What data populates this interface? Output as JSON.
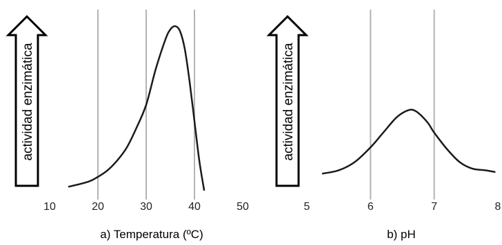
{
  "chart_data": [
    {
      "type": "line",
      "ylabel": "actividad enzimática",
      "xlabel": "a) Temperatura (ºC)",
      "x_ticks": [
        10,
        20,
        30,
        40,
        50
      ],
      "xlim": [
        10,
        50
      ],
      "ylim": [
        0,
        1
      ],
      "grid": "vertical",
      "gridlines_x": [
        20,
        30,
        40
      ],
      "series": [
        {
          "x": [
            14,
            18,
            20,
            22,
            24,
            26,
            28,
            30,
            32,
            34,
            35,
            36,
            37,
            38,
            39,
            40,
            41,
            42
          ],
          "values": [
            0.02,
            0.05,
            0.08,
            0.12,
            0.18,
            0.26,
            0.38,
            0.52,
            0.74,
            0.92,
            0.98,
            1.0,
            0.97,
            0.86,
            0.66,
            0.42,
            0.18,
            0.0
          ]
        }
      ]
    },
    {
      "type": "line",
      "ylabel": "actividad enzimática",
      "xlabel": "b) pH",
      "x_ticks": [
        5,
        6,
        7,
        8
      ],
      "xlim": [
        5,
        8
      ],
      "ylim": [
        0,
        1
      ],
      "grid": "vertical",
      "gridlines_x": [
        6,
        7
      ],
      "series": [
        {
          "x": [
            5.25,
            5.5,
            5.75,
            6.0,
            6.2,
            6.4,
            6.55,
            6.65,
            6.75,
            6.9,
            7.0,
            7.2,
            7.4,
            7.6,
            7.8,
            7.95
          ],
          "values": [
            0.1,
            0.12,
            0.17,
            0.26,
            0.35,
            0.44,
            0.48,
            0.49,
            0.47,
            0.41,
            0.35,
            0.25,
            0.17,
            0.13,
            0.12,
            0.11
          ]
        }
      ]
    }
  ]
}
